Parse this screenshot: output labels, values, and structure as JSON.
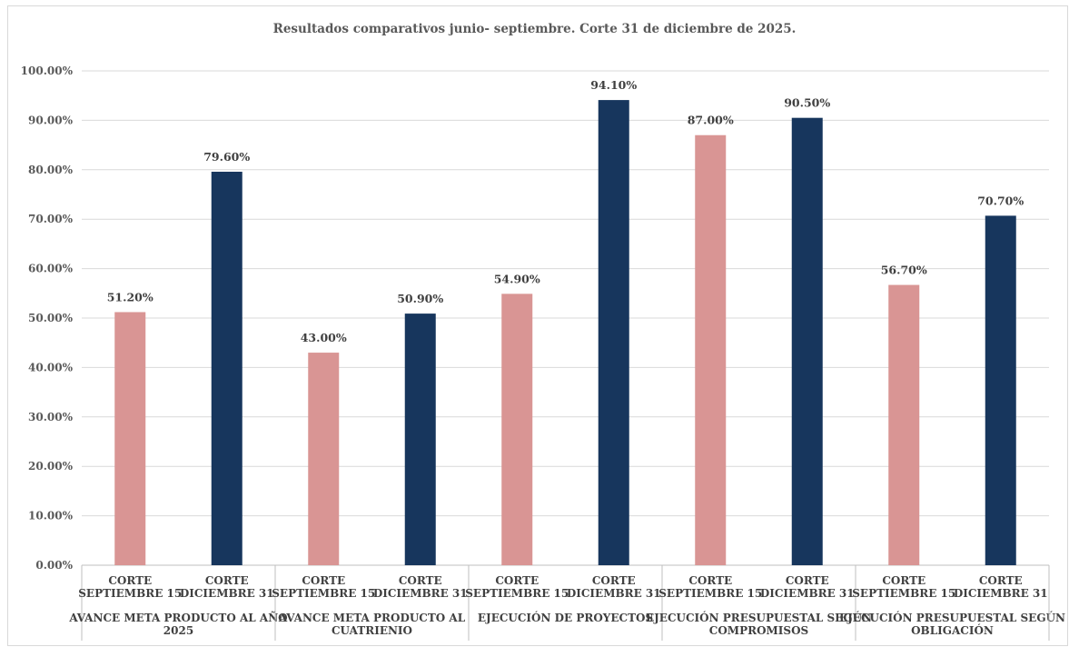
{
  "chart_data": {
    "type": "bar",
    "title": "Resultados comparativos junio- septiembre. Corte 31 de diciembre de 2025.",
    "xlabel": "",
    "ylabel": "",
    "ylim": [
      0,
      100
    ],
    "ytick_labels": [
      "0.00%",
      "10.00%",
      "20.00%",
      "30.00%",
      "40.00%",
      "50.00%",
      "60.00%",
      "70.00%",
      "80.00%",
      "90.00%",
      "100.00%"
    ],
    "grid": true,
    "legend": "none",
    "colors": {
      "septiembre": "#d99594",
      "diciembre": "#17365d"
    },
    "groups": [
      {
        "label": [
          "AVANCE META PRODUCTO AL AÑO",
          "2025"
        ],
        "bars": [
          {
            "label": [
              "CORTE",
              "SEPTIEMBRE 15"
            ],
            "value": 51.2,
            "display": "51.20%",
            "series": "septiembre"
          },
          {
            "label": [
              "CORTE",
              "DICIEMBRE 31"
            ],
            "value": 79.6,
            "display": "79.60%",
            "series": "diciembre"
          }
        ]
      },
      {
        "label": [
          "AVANCE META PRODUCTO AL",
          "CUATRIENIO"
        ],
        "bars": [
          {
            "label": [
              "CORTE",
              "SEPTIEMBRE 15"
            ],
            "value": 43.0,
            "display": "43.00%",
            "series": "septiembre"
          },
          {
            "label": [
              "CORTE",
              "DICIEMBRE 31"
            ],
            "value": 50.9,
            "display": "50.90%",
            "series": "diciembre"
          }
        ]
      },
      {
        "label": [
          "EJECUCIÓN DE PROYECTOS"
        ],
        "bars": [
          {
            "label": [
              "CORTE",
              "SEPTIEMBRE 15"
            ],
            "value": 54.9,
            "display": "54.90%",
            "series": "septiembre"
          },
          {
            "label": [
              "CORTE",
              "DICIEMBRE 31"
            ],
            "value": 94.1,
            "display": "94.10%",
            "series": "diciembre"
          }
        ]
      },
      {
        "label": [
          "EJECUCIÓN PRESUPUESTAL SEGÚN",
          "COMPROMISOS"
        ],
        "bars": [
          {
            "label": [
              "CORTE",
              "SEPTIEMBRE 15"
            ],
            "value": 87.0,
            "display": "87.00%",
            "series": "septiembre"
          },
          {
            "label": [
              "CORTE",
              "DICIEMBRE 31"
            ],
            "value": 90.5,
            "display": "90.50%",
            "series": "diciembre"
          }
        ]
      },
      {
        "label": [
          "EJECUCIÓN PRESUPUESTAL SEGÚN",
          "OBLIGACIÓN"
        ],
        "bars": [
          {
            "label": [
              "CORTE",
              "SEPTIEMBRE 15"
            ],
            "value": 56.7,
            "display": "56.70%",
            "series": "septiembre"
          },
          {
            "label": [
              "CORTE",
              "DICIEMBRE 31"
            ],
            "value": 70.7,
            "display": "70.70%",
            "series": "diciembre"
          }
        ]
      }
    ]
  }
}
